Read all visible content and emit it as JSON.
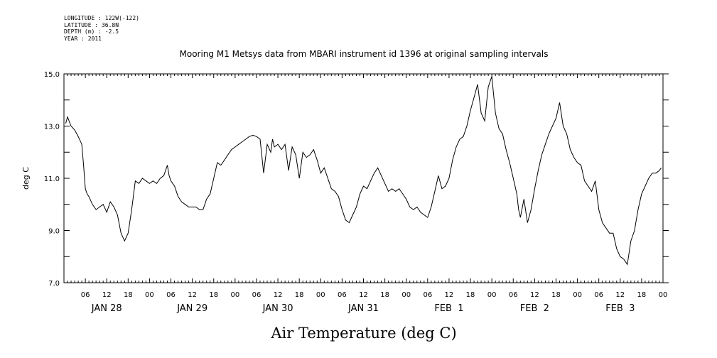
{
  "meta": {
    "longitude": "LONGITUDE : 122W(-122)",
    "latitude": "LATITUDE : 36.8N",
    "depth": "DEPTH (m) : -2.5",
    "year": "YEAR : 2011"
  },
  "chart_data": {
    "type": "line",
    "title": "Mooring M1 Metsys data from MBARI instrument id 1396 at original sampling intervals",
    "xlabel": "Air Temperature (deg C)",
    "ylabel": "deg C",
    "ylim": [
      7.0,
      15.0
    ],
    "yticks": [
      "7.0",
      "9.0",
      "11.0",
      "13.0",
      "15.0"
    ],
    "xlim_hours": [
      0,
      168
    ],
    "hour_tick_labels": [
      "06",
      "12",
      "18",
      "00"
    ],
    "day_labels": [
      "JAN 28",
      "JAN 29",
      "JAN 30",
      "JAN 31",
      "FEB  1",
      "FEB  2",
      "FEB  3"
    ],
    "x_hours": [
      0.5,
      1,
      2,
      3,
      4,
      5,
      5.5,
      6,
      6.5,
      7,
      8,
      9,
      10,
      11,
      12,
      13,
      14,
      15,
      16,
      17,
      18,
      19,
      20,
      21,
      22,
      23,
      24,
      25,
      26,
      27,
      28,
      29,
      29.5,
      30,
      31,
      32,
      33,
      34,
      35,
      36,
      37,
      38,
      39,
      40,
      41,
      42,
      43,
      44,
      45,
      46,
      47,
      48,
      49,
      50,
      51,
      52,
      53,
      54,
      55,
      56,
      57,
      58,
      58.5,
      59,
      60,
      61,
      62,
      63,
      64,
      65,
      66,
      67,
      68,
      69,
      70,
      71,
      72,
      73,
      74,
      75,
      76,
      77,
      78,
      79,
      80,
      81,
      82,
      83,
      84,
      85,
      86,
      87,
      88,
      89,
      90,
      91,
      92,
      93,
      94,
      95,
      96,
      97,
      98,
      99,
      100,
      101,
      102,
      103,
      104,
      105,
      106,
      107,
      108,
      109,
      110,
      111,
      112,
      113,
      114,
      115,
      116,
      117,
      118,
      119,
      120,
      121,
      122,
      123,
      124,
      125,
      126,
      127,
      127.5,
      128,
      129,
      130,
      131,
      132,
      133,
      134,
      135,
      136,
      137,
      138,
      139,
      140,
      141,
      142,
      143,
      144,
      145,
      146,
      147,
      148,
      149,
      150,
      151,
      152,
      153,
      154,
      155,
      156,
      157,
      158,
      159,
      160,
      161,
      162,
      163,
      164,
      165,
      166,
      167,
      167.5
    ],
    "values": [
      13.1,
      13.35,
      13.0,
      12.85,
      12.6,
      12.3,
      11.5,
      10.6,
      10.4,
      10.3,
      10.0,
      9.8,
      9.9,
      10.0,
      9.7,
      10.1,
      9.9,
      9.6,
      8.9,
      8.6,
      8.9,
      9.8,
      10.9,
      10.8,
      11.0,
      10.9,
      10.8,
      10.9,
      10.8,
      11.0,
      11.1,
      11.5,
      11.1,
      10.9,
      10.7,
      10.3,
      10.1,
      10.0,
      9.9,
      9.9,
      9.9,
      9.8,
      9.8,
      10.2,
      10.4,
      11.0,
      11.6,
      11.5,
      11.7,
      11.9,
      12.1,
      12.2,
      12.3,
      12.4,
      12.5,
      12.6,
      12.65,
      12.6,
      12.5,
      11.2,
      12.3,
      12.0,
      12.5,
      12.2,
      12.3,
      12.1,
      12.3,
      11.3,
      12.2,
      11.9,
      11.0,
      12.0,
      11.8,
      11.9,
      12.1,
      11.7,
      11.2,
      11.4,
      11.0,
      10.6,
      10.5,
      10.3,
      9.8,
      9.4,
      9.3,
      9.6,
      9.9,
      10.4,
      10.7,
      10.6,
      10.9,
      11.2,
      11.4,
      11.1,
      10.8,
      10.5,
      10.6,
      10.5,
      10.6,
      10.4,
      10.2,
      9.9,
      9.8,
      9.9,
      9.7,
      9.6,
      9.5,
      9.9,
      10.5,
      11.1,
      10.6,
      10.7,
      11.0,
      11.7,
      12.2,
      12.5,
      12.6,
      13.0,
      13.6,
      14.1,
      14.6,
      13.5,
      13.2,
      14.5,
      14.9,
      13.5,
      12.9,
      12.7,
      12.1,
      11.6,
      11.0,
      10.4,
      9.8,
      9.5,
      10.2,
      9.3,
      9.8,
      10.6,
      11.3,
      11.9,
      12.3,
      12.7,
      13.0,
      13.3,
      13.9,
      13.0,
      12.7,
      12.1,
      11.8,
      11.6,
      11.5,
      10.9,
      10.7,
      10.5,
      10.9,
      9.8,
      9.3,
      9.1,
      8.9,
      8.9,
      8.3,
      8.0,
      7.9,
      7.7,
      8.6,
      9.0,
      9.8,
      10.4,
      10.7,
      11.0,
      11.2,
      11.2,
      11.3,
      11.4
    ]
  }
}
